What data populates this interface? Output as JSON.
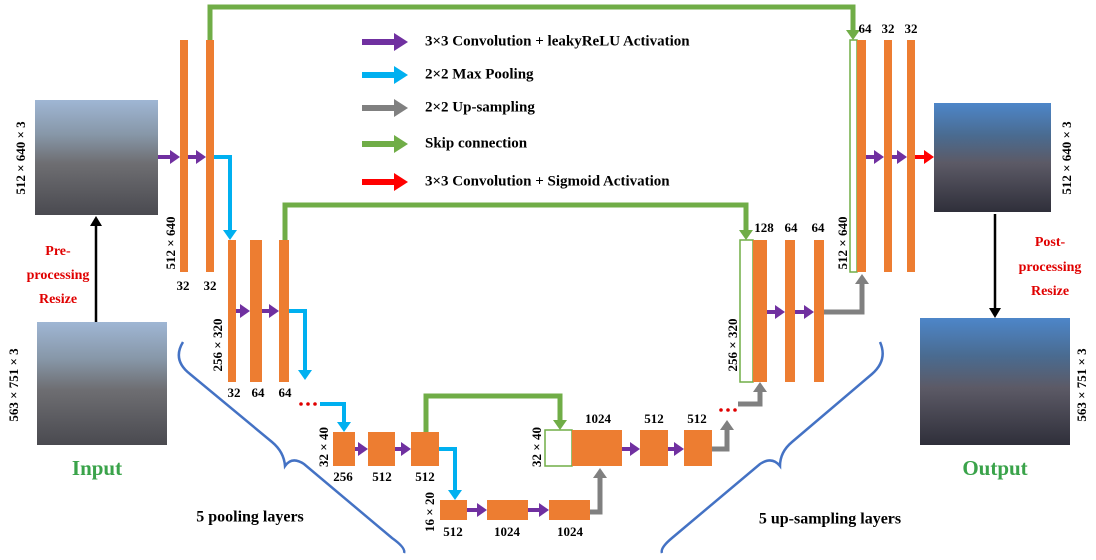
{
  "legend": [
    "3×3 Convolution + leakyReLU Activation",
    "2×2 Max Pooling",
    "2×2 Up-sampling",
    "Skip connection",
    "3×3 Convolution + Sigmoid Activation"
  ],
  "input": {
    "label": "Input",
    "original_size": "563 × 751 × 3",
    "resized_size": "512 × 640 × 3"
  },
  "output": {
    "label": "Output",
    "original_size": "563 × 751 × 3",
    "resized_size": "512 × 640 × 3"
  },
  "preprocessing": [
    "Pre-",
    "processing",
    "Resize"
  ],
  "postprocessing": [
    "Post-",
    "processing",
    "Resize"
  ],
  "encoder": [
    {
      "resolution": "512 × 640",
      "channels": [
        "32",
        "32"
      ]
    },
    {
      "resolution": "256 × 320",
      "channels": [
        "32",
        "64",
        "64"
      ]
    },
    {
      "resolution": "32 × 40",
      "channels": [
        "256",
        "512",
        "512"
      ]
    }
  ],
  "bottleneck": {
    "resolution": "16 × 20",
    "channels": [
      "512",
      "1024",
      "1024"
    ]
  },
  "decoder": [
    {
      "resolution": "32 × 40",
      "channels": [
        "1024",
        "512",
        "512"
      ]
    },
    {
      "resolution": "256 × 320",
      "channels": [
        "128",
        "64",
        "64"
      ]
    },
    {
      "resolution": "512 × 640",
      "channels": [
        "64",
        "32",
        "32"
      ]
    }
  ],
  "annotations": {
    "pooling": "5 pooling layers",
    "upsampling": "5 up-sampling layers"
  }
}
